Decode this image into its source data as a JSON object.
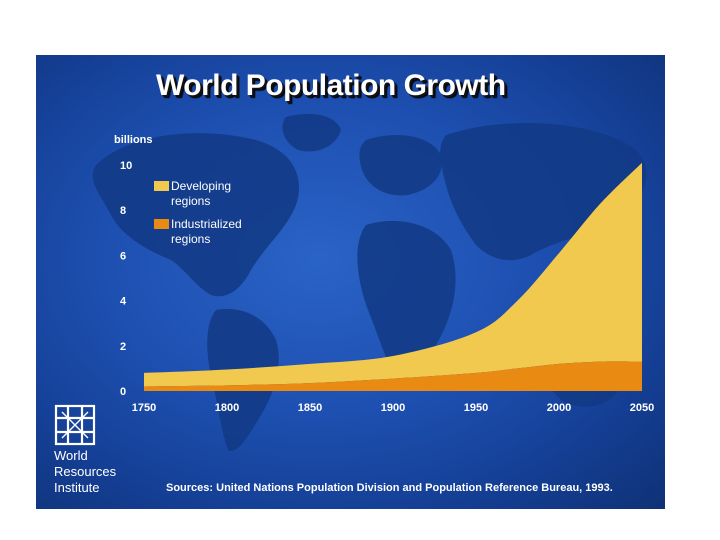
{
  "title": "World Population Growth",
  "source": "Sources: United Nations Population Division and Population Reference Bureau, 1993.",
  "organization": {
    "lines": [
      "World",
      "Resources",
      "Institute"
    ],
    "logo_icon": "wri-lattice-logo-icon"
  },
  "colors": {
    "background": "#1d4fb0",
    "developing": "#f2c94f",
    "industrialized": "#e98a12",
    "text": "#ffffff"
  },
  "chart_data": {
    "type": "area",
    "stacked": true,
    "title": "World Population Growth",
    "ylabel": "billions",
    "xlabel": "",
    "ylim": [
      0,
      10
    ],
    "xlim": [
      1750,
      2050
    ],
    "x_ticks": [
      1750,
      1800,
      1850,
      1900,
      1950,
      2000,
      2050
    ],
    "y_ticks": [
      0,
      2,
      4,
      6,
      8,
      10
    ],
    "legend_position": "top-left",
    "x": [
      1750,
      1800,
      1850,
      1900,
      1950,
      1975,
      2000,
      2025,
      2050
    ],
    "series": [
      {
        "name": "Industrialized regions",
        "color": "#e98a12",
        "values": [
          0.2,
          0.25,
          0.35,
          0.55,
          0.8,
          1.0,
          1.2,
          1.3,
          1.3
        ]
      },
      {
        "name": "Developing regions",
        "color": "#f2c94f",
        "values": [
          0.6,
          0.7,
          0.85,
          1.0,
          1.8,
          3.0,
          4.9,
          7.0,
          8.8
        ]
      }
    ]
  }
}
